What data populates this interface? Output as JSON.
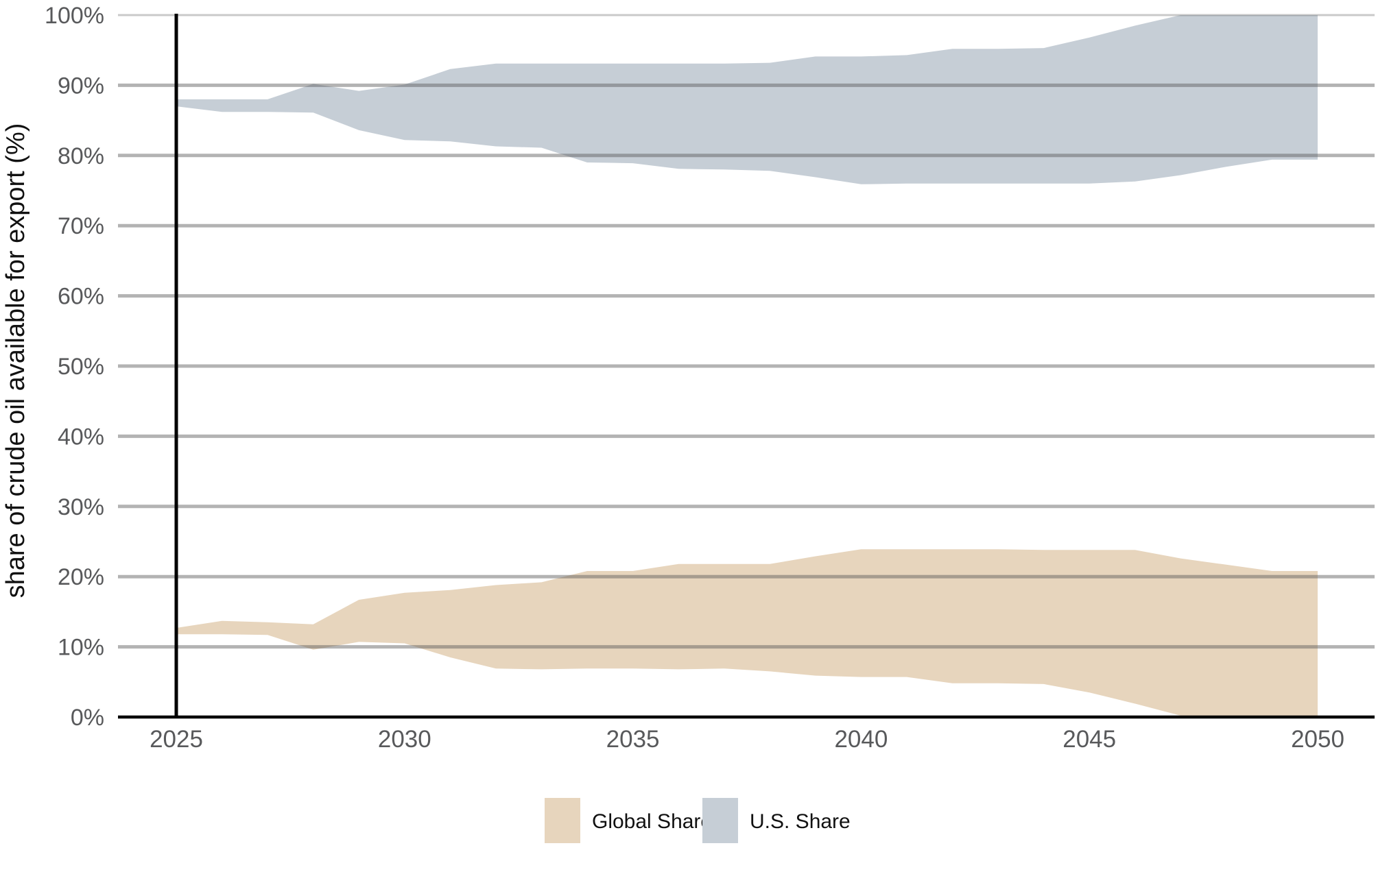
{
  "page": {
    "background": "#ffffff"
  },
  "y_axis": {
    "title": "share of crude oil available for export (%)",
    "tick_values": [
      0,
      10,
      20,
      30,
      40,
      50,
      60,
      70,
      80,
      90,
      100
    ],
    "tick_labels": [
      "0%",
      "10%",
      "20%",
      "30%",
      "40%",
      "50%",
      "60%",
      "70%",
      "80%",
      "90%",
      "100%"
    ]
  },
  "x_axis": {
    "tick_values": [
      2025,
      2030,
      2035,
      2040,
      2045,
      2050
    ],
    "tick_labels": [
      "2025",
      "2030",
      "2035",
      "2040",
      "2045",
      "2050"
    ]
  },
  "legend": {
    "items": [
      {
        "label": "Global Share",
        "color": "#e7d5bd"
      },
      {
        "label": "U.S. Share",
        "color": "#c6ced6"
      }
    ]
  },
  "colors": {
    "gridline": "#5a5a5a",
    "gridline_over_white": "#b1b1b1",
    "axis_line": "#000000",
    "current_year_line": "#000000",
    "tick_text": "#58595b",
    "title_text": "#111111",
    "legend_text": "#111111",
    "global_band": "#e7d5bd",
    "us_band": "#c6ced6"
  },
  "chart_data": {
    "type": "area",
    "subtype": "uncertainty-bands",
    "title": "",
    "xlabel": "",
    "ylabel": "share of crude oil available for export (%)",
    "xlim": [
      2025,
      2050
    ],
    "ylim": [
      0,
      100
    ],
    "grid": "horizontal",
    "legend_position": "bottom-center",
    "x": [
      2025,
      2026,
      2027,
      2028,
      2029,
      2030,
      2031,
      2032,
      2033,
      2034,
      2035,
      2036,
      2037,
      2038,
      2039,
      2040,
      2041,
      2042,
      2043,
      2044,
      2045,
      2046,
      2047,
      2048,
      2049,
      2050
    ],
    "series": [
      {
        "name": "Global Share",
        "color": "#e7d5bd",
        "upper": [
          12.7,
          13.7,
          13.5,
          13.2,
          16.7,
          17.7,
          18.1,
          18.8,
          19.2,
          20.8,
          20.8,
          21.8,
          21.8,
          21.8,
          22.9,
          23.9,
          23.9,
          23.9,
          23.9,
          23.8,
          23.8,
          23.8,
          22.6,
          21.7,
          20.8,
          20.8
        ],
        "lower": [
          11.8,
          11.8,
          11.7,
          9.6,
          10.7,
          10.5,
          8.5,
          6.9,
          6.8,
          6.9,
          6.9,
          6.8,
          6.9,
          6.5,
          5.9,
          5.7,
          5.7,
          4.8,
          4.8,
          4.7,
          3.5,
          1.9,
          0.2,
          0,
          0,
          0
        ]
      },
      {
        "name": "U.S. Share",
        "color": "#c6ced6",
        "upper": [
          88.0,
          88.0,
          88.0,
          90.2,
          89.2,
          90.1,
          92.3,
          93.1,
          93.1,
          93.1,
          93.1,
          93.1,
          93.1,
          93.2,
          94.1,
          94.1,
          94.3,
          95.2,
          95.2,
          95.3,
          96.8,
          98.5,
          100,
          100,
          100,
          100
        ],
        "lower": [
          87.0,
          86.2,
          86.2,
          86.1,
          83.6,
          82.2,
          82.0,
          81.3,
          81.1,
          79.0,
          78.9,
          78.1,
          78.0,
          77.8,
          76.9,
          75.9,
          76.0,
          76.0,
          76.0,
          76.0,
          76.0,
          76.3,
          77.2,
          78.4,
          79.4,
          79.4
        ]
      }
    ],
    "annotations": [
      {
        "type": "vline",
        "x": 2025,
        "color": "#000000",
        "label": "current year marker"
      }
    ]
  }
}
